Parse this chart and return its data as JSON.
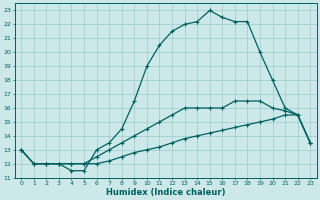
{
  "xlabel": "Humidex (Indice chaleur)",
  "ylabel": "",
  "bg_color": "#cce8e8",
  "line_color": "#006060",
  "grid_color": "#99cccc",
  "xlim": [
    -0.5,
    23.5
  ],
  "ylim": [
    11,
    23.5
  ],
  "xticks": [
    0,
    1,
    2,
    3,
    4,
    5,
    6,
    7,
    8,
    9,
    10,
    11,
    12,
    13,
    14,
    15,
    16,
    17,
    18,
    19,
    20,
    21,
    22,
    23
  ],
  "yticks": [
    11,
    12,
    13,
    14,
    15,
    16,
    17,
    18,
    19,
    20,
    21,
    22,
    23
  ],
  "line1_x": [
    0,
    1,
    2,
    3,
    4,
    5,
    6,
    7,
    8,
    9,
    10,
    11,
    12,
    13,
    14,
    15,
    16,
    17,
    18,
    19,
    20,
    21,
    22,
    23
  ],
  "line1_y": [
    13,
    12,
    12,
    12,
    11.5,
    11.5,
    13,
    13.5,
    14.5,
    16.5,
    19,
    20.5,
    21.5,
    22,
    22.2,
    23,
    22.5,
    22.2,
    22.2,
    20,
    18,
    16,
    15.5,
    13.5
  ],
  "line2_x": [
    0,
    1,
    2,
    3,
    4,
    5,
    6,
    7,
    8,
    9,
    10,
    11,
    12,
    13,
    14,
    15,
    16,
    17,
    18,
    19,
    20,
    21,
    22,
    23
  ],
  "line2_y": [
    13,
    12,
    12,
    12,
    12,
    12,
    12.5,
    13,
    13.5,
    14,
    14.5,
    15,
    15.5,
    16,
    16,
    16,
    16,
    16.5,
    16.5,
    16.5,
    16,
    15.8,
    15.5,
    13.5
  ],
  "line3_x": [
    0,
    1,
    2,
    3,
    4,
    5,
    6,
    7,
    8,
    9,
    10,
    11,
    12,
    13,
    14,
    15,
    16,
    17,
    18,
    19,
    20,
    21,
    22,
    23
  ],
  "line3_y": [
    13,
    12,
    12,
    12,
    12,
    12,
    12,
    12.2,
    12.5,
    12.8,
    13,
    13.2,
    13.5,
    13.8,
    14,
    14.2,
    14.4,
    14.6,
    14.8,
    15,
    15.2,
    15.5,
    15.5,
    13.5
  ]
}
